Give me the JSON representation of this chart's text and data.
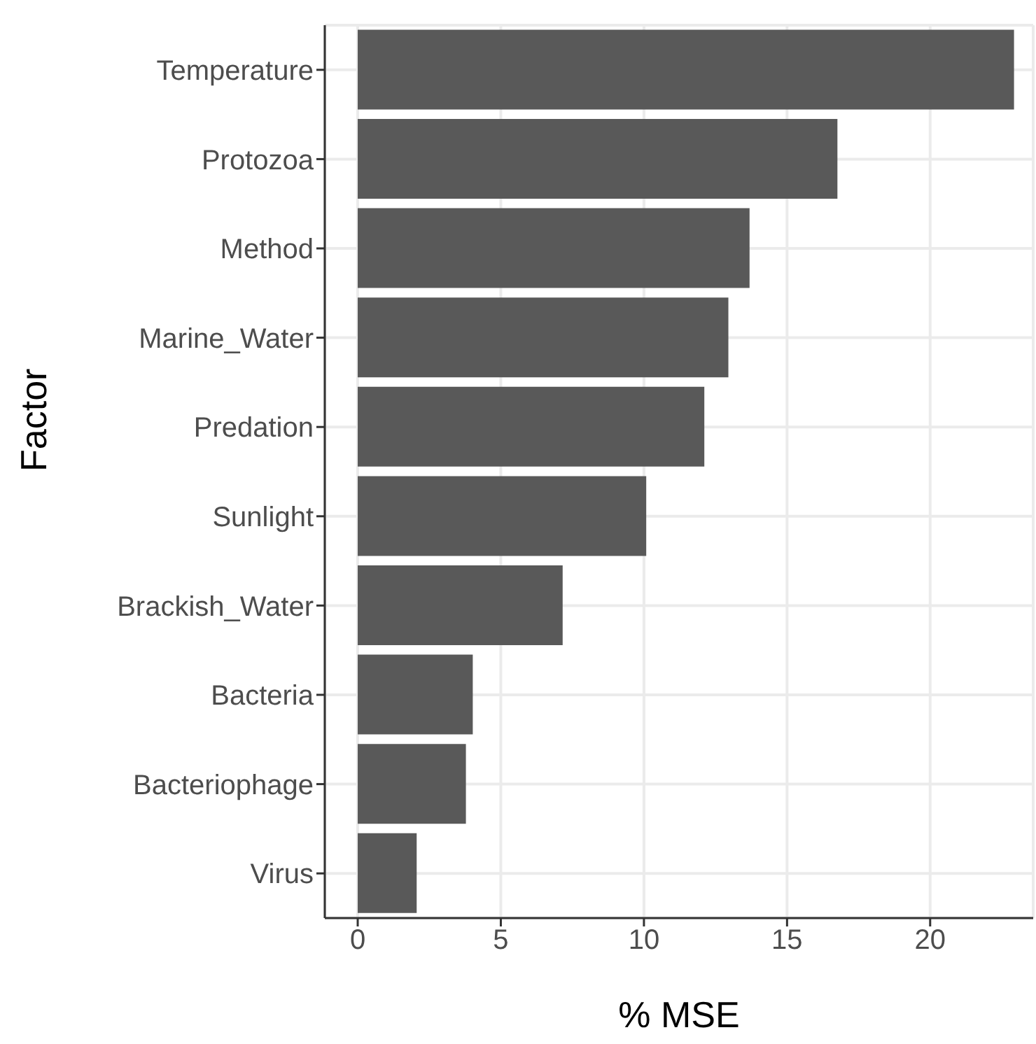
{
  "chart_data": {
    "type": "bar",
    "orientation": "horizontal",
    "xlabel": "% MSE",
    "ylabel": "Factor",
    "categories": [
      "Temperature",
      "Protozoa",
      "Method",
      "Marine_Water",
      "Predation",
      "Sunlight",
      "Brackish_Water",
      "Bacteria",
      "Bacteriophage",
      "Virus"
    ],
    "values": [
      22.93,
      16.76,
      13.69,
      12.95,
      12.11,
      10.08,
      7.16,
      4.02,
      3.78,
      2.06
    ],
    "color": "#595959",
    "xlim": [
      -1.15,
      23.6
    ],
    "xticks": [
      0,
      5,
      10,
      15,
      20
    ],
    "grid": true
  }
}
